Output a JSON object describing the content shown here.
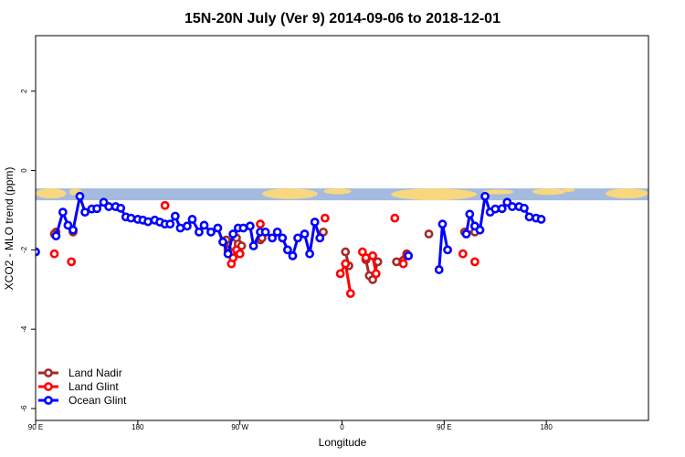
{
  "chart_data": {
    "type": "line",
    "title": "15N-20N July (Ver 9)   2014-09-06 to 2018-12-01",
    "xlabel": "Longitude",
    "ylabel": "XCO2 - MLO trend (ppm)",
    "xlim": [
      -90,
      270
    ],
    "ylim": [
      -6.3,
      3.4
    ],
    "grid": false,
    "legend_position": "bottom-left",
    "x_ticks": [
      {
        "value": -90,
        "label": "90 E"
      },
      {
        "value": -30,
        "label": "180"
      },
      {
        "value": 30,
        "label": "90 W"
      },
      {
        "value": 90,
        "label": "0"
      },
      {
        "value": 150,
        "label": "90 E"
      },
      {
        "value": 210,
        "label": "180"
      }
    ],
    "y_ticks": [
      {
        "value": -6,
        "label": "-6"
      },
      {
        "value": -4,
        "label": "-4"
      },
      {
        "value": -2,
        "label": "-2"
      },
      {
        "value": 0,
        "label": "0"
      },
      {
        "value": 2,
        "label": "2"
      }
    ],
    "map_band": {
      "y_top": -0.45,
      "y_bottom": -0.75,
      "ocean_color": "#a4bbdf",
      "land_color": "#f8d77e"
    },
    "series": [
      {
        "name": "Land Nadir",
        "color": "#a52a2a",
        "segments": [
          [
            [
              -78,
              -1.55
            ],
            [
              -79,
              -1.6
            ]
          ],
          [
            [
              -68,
              -1.55
            ]
          ],
          [
            [
              22,
              -1.75
            ],
            [
              23,
              -2.0
            ]
          ],
          [
            [
              28,
              -1.7
            ],
            [
              29,
              -1.85
            ],
            [
              30,
              -2.1
            ],
            [
              31,
              -1.9
            ]
          ],
          [
            [
              42,
              -1.75
            ],
            [
              43,
              -1.7
            ]
          ],
          [
            [
              79,
              -1.55
            ]
          ],
          [
            [
              92,
              -2.05
            ],
            [
              94,
              -2.4
            ]
          ],
          [
            [
              104,
              -2.25
            ],
            [
              106,
              -2.65
            ],
            [
              108,
              -2.75
            ],
            [
              111,
              -2.3
            ]
          ],
          [
            [
              122,
              -2.3
            ],
            [
              128,
              -2.1
            ]
          ],
          [
            [
              141,
              -1.6
            ]
          ],
          [
            [
              162,
              -1.55
            ],
            [
              168,
              -1.55
            ]
          ]
        ]
      },
      {
        "name": "Land Glint",
        "color": "#ff0000",
        "segments": [
          [
            [
              -79,
              -2.1
            ]
          ],
          [
            [
              -69,
              -2.3
            ]
          ],
          [
            [
              -14,
              -0.88
            ]
          ],
          [
            [
              25,
              -2.35
            ],
            [
              26,
              -2.2
            ],
            [
              28,
              -2.0
            ],
            [
              30,
              -2.1
            ]
          ],
          [
            [
              42,
              -1.35
            ]
          ],
          [
            [
              80,
              -1.2
            ]
          ],
          [
            [
              89,
              -2.6
            ],
            [
              92,
              -2.35
            ],
            [
              95,
              -3.1
            ]
          ],
          [
            [
              102,
              -2.05
            ],
            [
              104,
              -2.2
            ],
            [
              108,
              -2.15
            ],
            [
              110,
              -2.6
            ]
          ],
          [
            [
              121,
              -1.2
            ]
          ],
          [
            [
              126,
              -2.35
            ],
            [
              128,
              -2.15
            ]
          ],
          [
            [
              161,
              -2.1
            ]
          ],
          [
            [
              168,
              -2.3
            ]
          ]
        ]
      },
      {
        "name": "Ocean Glint",
        "color": "#0000ff",
        "segments": [
          [
            [
              -90,
              -2.05
            ]
          ],
          [
            [
              -78,
              -1.65
            ],
            [
              -74,
              -1.05
            ],
            [
              -71,
              -1.38
            ],
            [
              -68,
              -1.5
            ],
            [
              -64,
              -0.65
            ],
            [
              -61,
              -1.05
            ],
            [
              -57,
              -0.97
            ],
            [
              -54,
              -0.96
            ],
            [
              -50,
              -0.8
            ],
            [
              -47,
              -0.91
            ],
            [
              -43,
              -0.91
            ],
            [
              -40,
              -0.95
            ],
            [
              -37,
              -1.17
            ],
            [
              -34,
              -1.2
            ],
            [
              -30,
              -1.23
            ],
            [
              -27,
              -1.25
            ],
            [
              -24,
              -1.29
            ],
            [
              -20,
              -1.25
            ],
            [
              -17,
              -1.3
            ],
            [
              -14,
              -1.35
            ],
            [
              -11,
              -1.35
            ],
            [
              -8,
              -1.15
            ],
            [
              -5,
              -1.45
            ],
            [
              -1,
              -1.4
            ],
            [
              2,
              -1.23
            ],
            [
              6,
              -1.55
            ],
            [
              9,
              -1.38
            ],
            [
              13,
              -1.55
            ],
            [
              17,
              -1.45
            ],
            [
              20,
              -1.8
            ],
            [
              23,
              -2.1
            ],
            [
              26,
              -1.6
            ],
            [
              29,
              -1.45
            ],
            [
              32,
              -1.45
            ],
            [
              36,
              -1.4
            ],
            [
              38,
              -1.9
            ],
            [
              42,
              -1.55
            ],
            [
              45,
              -1.55
            ],
            [
              49,
              -1.7
            ],
            [
              52,
              -1.55
            ],
            [
              55,
              -1.7
            ],
            [
              58,
              -2.0
            ],
            [
              61,
              -2.15
            ],
            [
              64,
              -1.7
            ],
            [
              68,
              -1.6
            ],
            [
              71,
              -2.1
            ],
            [
              74,
              -1.3
            ],
            [
              77,
              -1.7
            ]
          ],
          [
            [
              129,
              -2.15
            ]
          ],
          [
            [
              147,
              -2.5
            ],
            [
              149,
              -1.35
            ],
            [
              152,
              -2.0
            ]
          ],
          [
            [
              163,
              -1.6
            ],
            [
              165,
              -1.1
            ],
            [
              168,
              -1.4
            ],
            [
              171,
              -1.5
            ],
            [
              174,
              -0.65
            ],
            [
              177,
              -1.05
            ],
            [
              180,
              -0.97
            ],
            [
              184,
              -0.96
            ],
            [
              187,
              -0.8
            ],
            [
              190,
              -0.91
            ],
            [
              194,
              -0.91
            ],
            [
              197,
              -0.95
            ],
            [
              200,
              -1.17
            ],
            [
              204,
              -1.2
            ],
            [
              207,
              -1.23
            ]
          ]
        ]
      }
    ]
  },
  "legend": [
    {
      "label": "Land Nadir",
      "color": "#a52a2a"
    },
    {
      "label": "Land Glint",
      "color": "#ff0000"
    },
    {
      "label": "Ocean Glint",
      "color": "#0000ff"
    }
  ]
}
